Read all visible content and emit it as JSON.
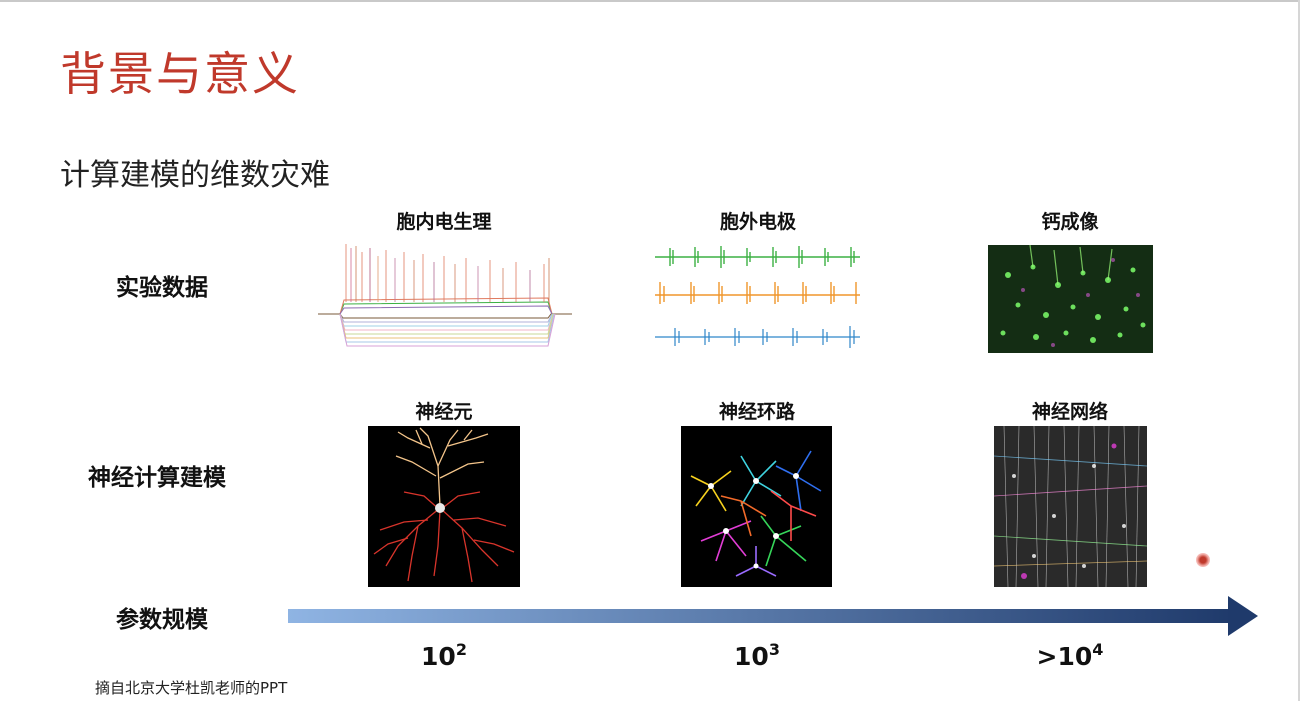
{
  "slide": {
    "title": "背景与意义",
    "subtitle": "计算建模的维数灾难",
    "footnote": "摘自北京大学杜凯老师的PPT"
  },
  "rows": {
    "experiment": "实验数据",
    "modeling": "神经计算建模",
    "params": "参数规模"
  },
  "columns": {
    "intracellular": "胞内电生理",
    "extracellular": "胞外电极",
    "calcium": "钙成像",
    "neuron": "神经元",
    "circuit": "神经环路",
    "network": "神经网络"
  },
  "scale": [
    {
      "base": "10",
      "exp": "2"
    },
    {
      "base": "10",
      "exp": "3"
    },
    {
      "base": ">10",
      "exp": "4"
    }
  ],
  "colors": {
    "title": "#c0392b",
    "arrow_start": "#8fb4e3",
    "arrow_end": "#1f3a6b",
    "spike_green": "#3cb043",
    "spike_orange": "#f0962b",
    "spike_blue": "#2f86c9"
  }
}
